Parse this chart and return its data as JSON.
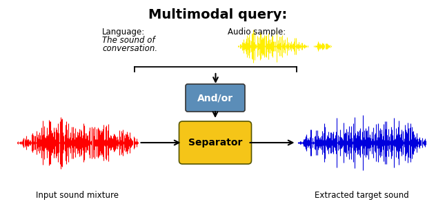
{
  "title": "Multimodal query:",
  "title_fontsize": 14,
  "title_fontweight": "bold",
  "bg_color": "#ffffff",
  "language_label": "Language:",
  "language_text": "The sound of\nconversation.",
  "audio_label": "Audio sample:",
  "andor_box_color": "#5b8db8",
  "andor_text": "And/or",
  "andor_text_color": "#ffffff",
  "separator_box_color": "#f5c518",
  "separator_text": "Separator",
  "separator_text_color": "#000000",
  "input_label": "Input sound mixture",
  "output_label": "Extracted target sound",
  "red_wave_color": "#ff0000",
  "yellow_wave_color": "#ffee00",
  "blue_wave_color": "#0000dd",
  "arrow_color": "#000000"
}
